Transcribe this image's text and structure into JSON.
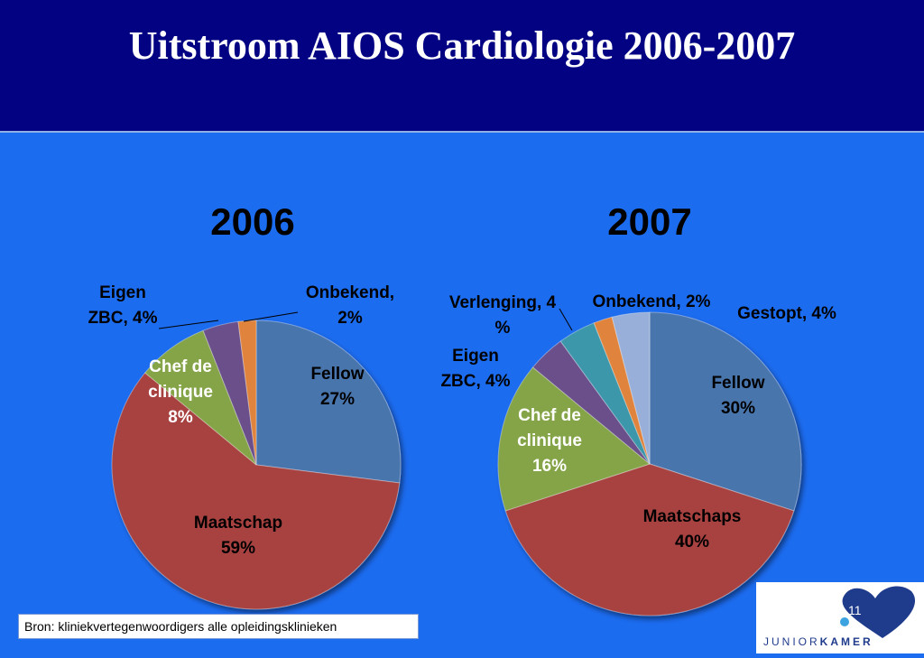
{
  "title": "Uitstroom AIOS Cardiologie 2006-2007",
  "source": "Bron: kliniekvertegenwoordigers alle opleidingsklinieken",
  "page_number": "11",
  "logo": {
    "text_light": "JUNIOR",
    "text_bold": "KAMER"
  },
  "colors": {
    "header_bg": "#020282",
    "slide_bg": "#1c6cf0",
    "fellow": "#4a74ad",
    "maatschap": "#a8423f",
    "chef": "#85a446",
    "eigen": "#6a4f8a",
    "verlenging": "#3d97ab",
    "onbekend": "#e0843d",
    "gestopt": "#98b0d9"
  },
  "chart_data": [
    {
      "type": "pie",
      "title": "2006",
      "slices": [
        {
          "name": "Fellow",
          "value": 27,
          "color": "#4a74ad",
          "label_lines": [
            "Fellow",
            "27%"
          ]
        },
        {
          "name": "Maatschap",
          "value": 59,
          "color": "#a8423f",
          "label_lines": [
            "Maatschap",
            "59%"
          ]
        },
        {
          "name": "Chef de clinique",
          "value": 8,
          "color": "#85a446",
          "label_lines": [
            "Chef de",
            "clinique",
            "8%"
          ]
        },
        {
          "name": "Eigen ZBC",
          "value": 4,
          "color": "#6a4f8a",
          "label_lines": [
            "Eigen",
            "ZBC, 4%"
          ]
        },
        {
          "name": "Onbekend",
          "value": 2,
          "color": "#e0843d",
          "label_lines": [
            "Onbekend,",
            "2%"
          ]
        }
      ]
    },
    {
      "type": "pie",
      "title": "2007",
      "slices": [
        {
          "name": "Fellow",
          "value": 30,
          "color": "#4a74ad",
          "label_lines": [
            "Fellow",
            "30%"
          ]
        },
        {
          "name": "Maatschaps",
          "value": 40,
          "color": "#a8423f",
          "label_lines": [
            "Maatschaps",
            "40%"
          ]
        },
        {
          "name": "Chef de clinique",
          "value": 16,
          "color": "#85a446",
          "label_lines": [
            "Chef de",
            "clinique",
            "16%"
          ]
        },
        {
          "name": "Eigen ZBC",
          "value": 4,
          "color": "#6a4f8a",
          "label_lines": [
            "Eigen",
            "ZBC, 4%"
          ]
        },
        {
          "name": "Verlenging",
          "value": 4,
          "color": "#3d97ab",
          "label_lines": [
            "Verlenging, 4",
            "%"
          ]
        },
        {
          "name": "Onbekend",
          "value": 2,
          "color": "#e0843d",
          "label_lines": [
            "Onbekend, 2%"
          ]
        },
        {
          "name": "Gestopt",
          "value": 4,
          "color": "#98b0d9",
          "label_lines": [
            "Gestopt, 4%"
          ]
        }
      ]
    }
  ]
}
